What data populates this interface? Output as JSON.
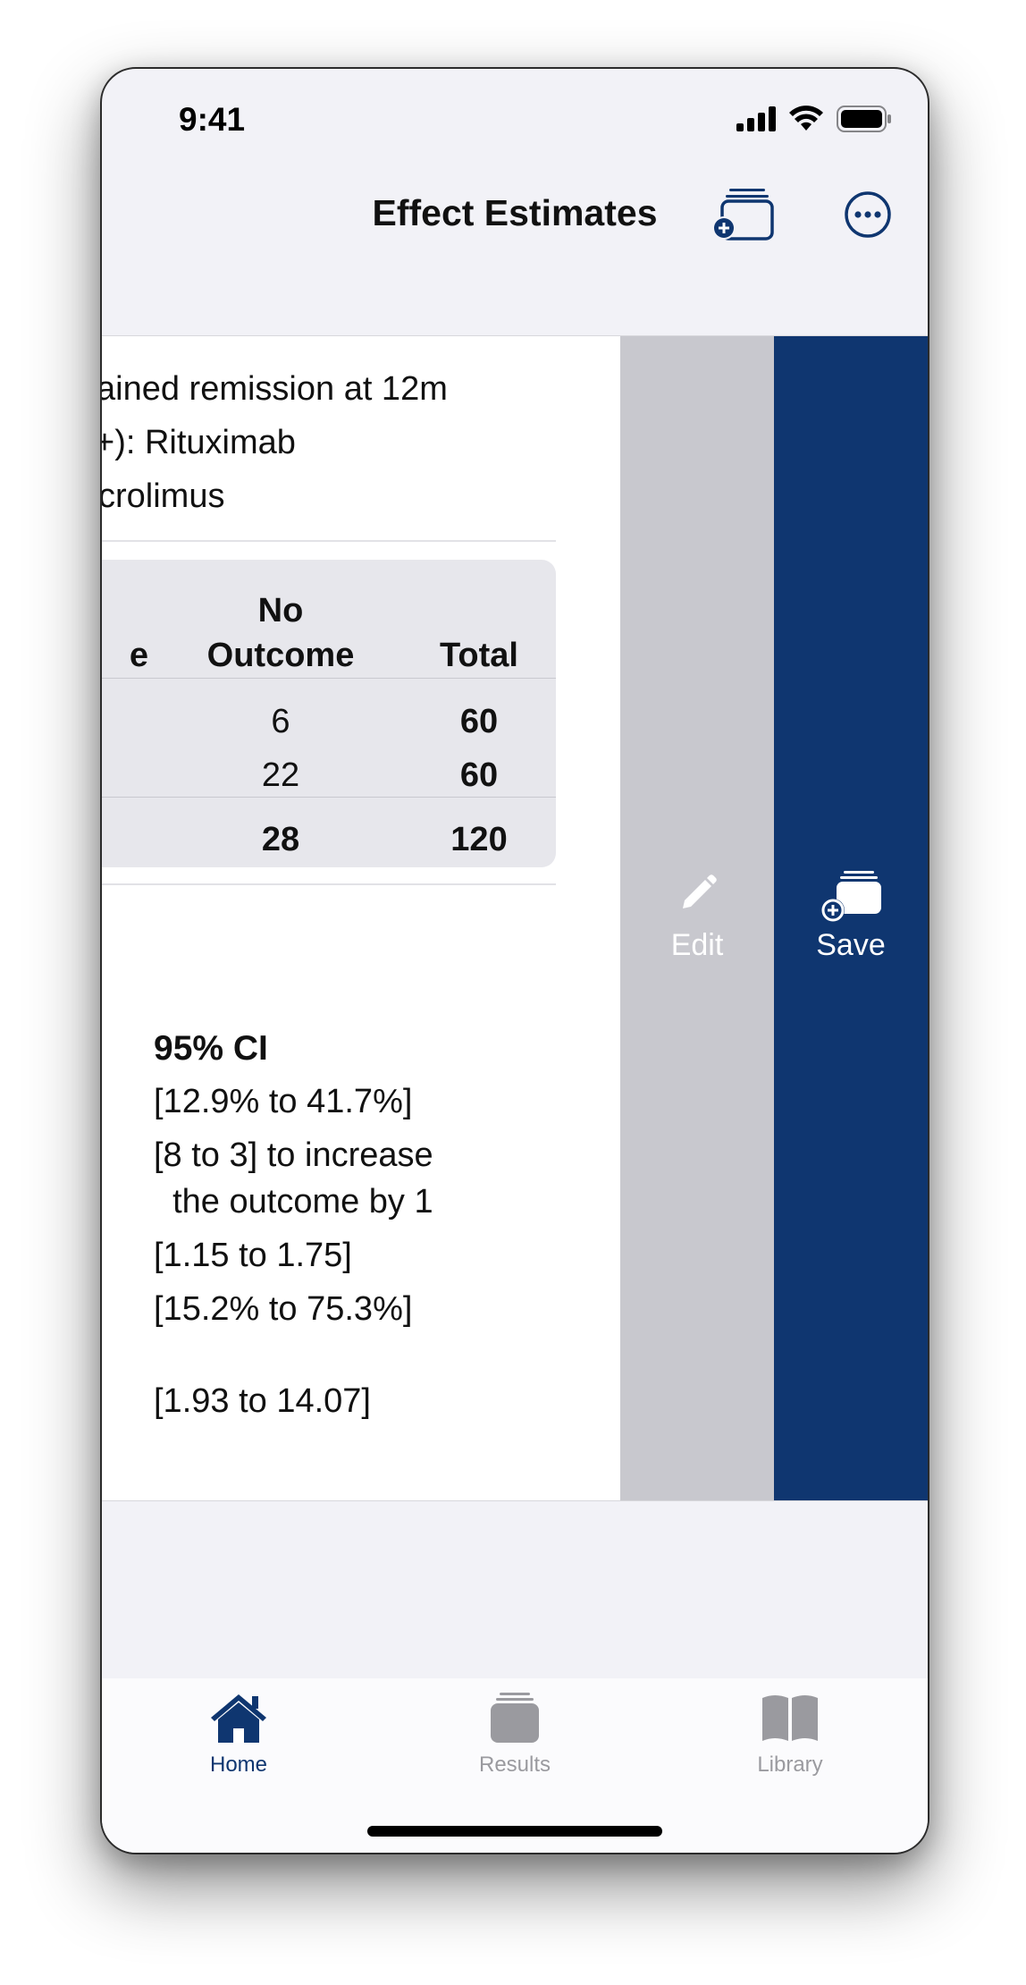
{
  "status": {
    "time": "9:41"
  },
  "nav": {
    "title": "Effect Estimates",
    "add_icon": "add-to-collection-icon",
    "more_icon": "ellipsis-circle-icon"
  },
  "summary": {
    "lines": [
      "ained remission at 12m",
      "+): Rituximab",
      "crolimus"
    ]
  },
  "table": {
    "col_partial": "e",
    "col_no_outcome_1": "No",
    "col_no_outcome_2": "Outcome",
    "col_total": "Total",
    "rows": [
      {
        "no_outcome": "6",
        "total": "60"
      },
      {
        "no_outcome": "22",
        "total": "60"
      }
    ],
    "totals": {
      "no_outcome": "28",
      "total": "120"
    }
  },
  "estimates": {
    "ci_header": "95% CI",
    "ci_values": [
      "[12.9% to 41.7%]",
      "[8 to 3] to increase",
      "  the outcome by 1",
      "[1.15 to 1.75]",
      "[15.2% to 75.3%]",
      "[1.93 to 14.07]"
    ]
  },
  "actions": {
    "edit": "Edit",
    "save": "Save",
    "edit_color": "#c8c8ce",
    "save_color": "#0f3670"
  },
  "tabbar": {
    "tabs": [
      {
        "label": "Home",
        "icon": "house-icon",
        "active": true
      },
      {
        "label": "Results",
        "icon": "stack-icon",
        "active": false
      },
      {
        "label": "Library",
        "icon": "book-icon",
        "active": false
      }
    ],
    "active_color": "#0f3670",
    "inactive_color": "#9a9a9f"
  }
}
